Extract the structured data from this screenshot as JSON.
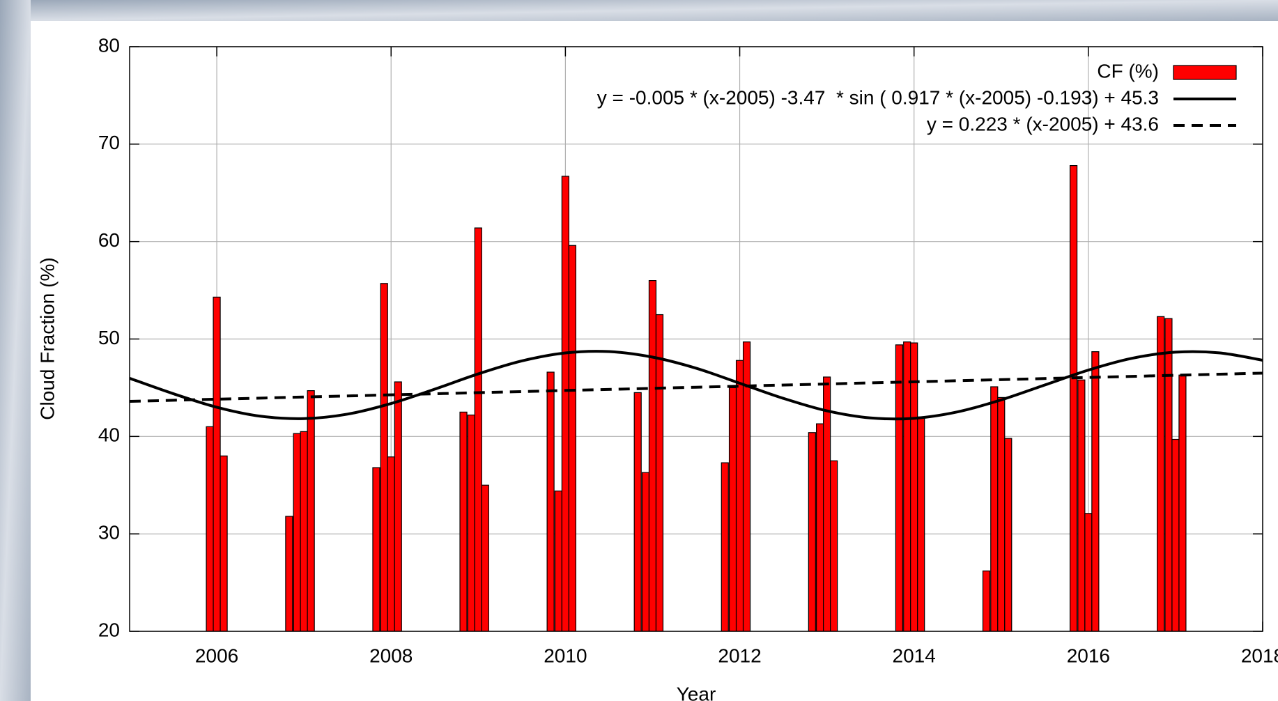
{
  "chart_data": {
    "type": "bar",
    "xlabel": "Year",
    "ylabel": "Cloud Fraction (%)",
    "xlim": [
      2005,
      2018
    ],
    "xticks": [
      2006,
      2008,
      2010,
      2012,
      2014,
      2016,
      2018
    ],
    "ylim": [
      20,
      80
    ],
    "yticks": [
      20,
      30,
      40,
      50,
      60,
      70,
      80
    ],
    "grid": true,
    "legend": "top right",
    "series": [
      {
        "name": "CF (%)",
        "type": "bar",
        "color": "#ff0000",
        "x": [
          2005.92,
          2006.0,
          2006.08,
          2006.83,
          2006.92,
          2007.0,
          2007.08,
          2007.83,
          2007.92,
          2008.0,
          2008.08,
          2008.83,
          2008.92,
          2009.0,
          2009.08,
          2009.83,
          2009.92,
          2010.0,
          2010.08,
          2010.83,
          2010.92,
          2011.0,
          2011.08,
          2011.83,
          2011.92,
          2012.0,
          2012.08,
          2012.83,
          2012.92,
          2013.0,
          2013.08,
          2013.83,
          2013.92,
          2014.0,
          2014.08,
          2014.83,
          2014.92,
          2015.0,
          2015.08,
          2015.83,
          2015.92,
          2016.0,
          2016.08,
          2016.83,
          2016.92,
          2017.0,
          2017.08
        ],
        "values": [
          41.0,
          54.3,
          38.0,
          31.8,
          40.3,
          40.5,
          44.7,
          36.8,
          55.7,
          37.9,
          45.6,
          42.5,
          42.2,
          61.4,
          35.0,
          46.6,
          34.4,
          66.7,
          59.6,
          44.5,
          36.3,
          56.0,
          52.5,
          37.3,
          45.0,
          47.8,
          49.7,
          40.4,
          41.3,
          46.1,
          37.5,
          49.4,
          49.7,
          49.6,
          42.0,
          26.2,
          45.1,
          44.0,
          39.8,
          67.8,
          45.8,
          32.1,
          48.7,
          52.3,
          52.1,
          39.7,
          46.3
        ]
      },
      {
        "name": "y = -0.005 * (x-2005) -3.47  * sin ( 0.917 * (x-2005) -0.193) + 45.3",
        "type": "line",
        "line_style": "solid",
        "color": "#000000",
        "x": [
          2005,
          2005.5,
          2006,
          2006.5,
          2007,
          2007.5,
          2008,
          2008.5,
          2009,
          2009.5,
          2010,
          2010.5,
          2011,
          2011.5,
          2012,
          2012.5,
          2013,
          2013.5,
          2014,
          2014.5,
          2015,
          2015.5,
          2016,
          2016.5,
          2017,
          2017.5,
          2018
        ],
        "values": [
          45.97,
          44.39,
          43.0,
          42.08,
          41.83,
          42.29,
          43.38,
          44.85,
          46.42,
          47.75,
          48.57,
          48.71,
          48.14,
          47.0,
          45.46,
          43.91,
          42.63,
          41.9,
          41.86,
          42.52,
          43.75,
          45.28,
          46.81,
          48.02,
          48.65,
          48.58,
          47.82
        ]
      },
      {
        "name": "y = 0.223 * (x-2005) + 43.6",
        "type": "line",
        "line_style": "dashed",
        "color": "#000000",
        "x": [
          2005,
          2018
        ],
        "values": [
          43.6,
          46.5
        ]
      }
    ]
  }
}
